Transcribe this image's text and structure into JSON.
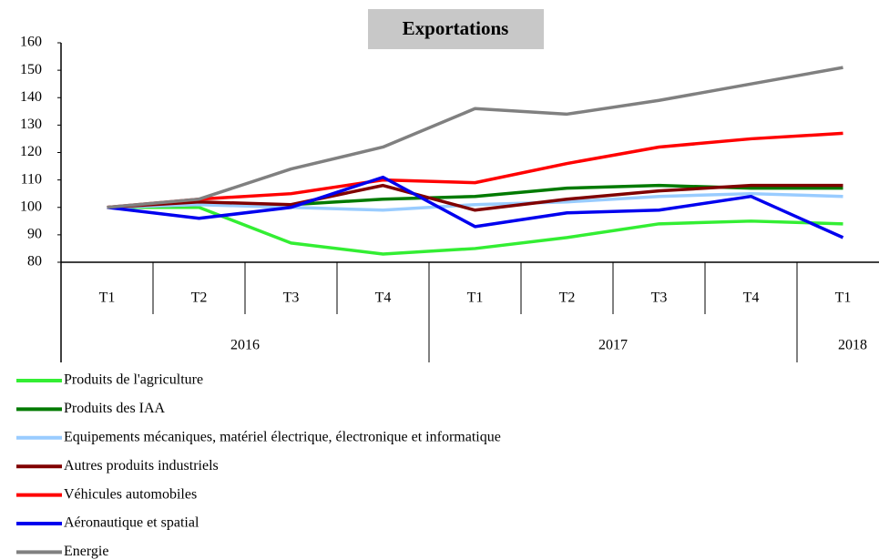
{
  "chart_data": {
    "type": "line",
    "title": "Exportations",
    "categories": [
      "T1",
      "T2",
      "T3",
      "T4",
      "T1",
      "T2",
      "T3",
      "T4",
      "T1"
    ],
    "groups": [
      {
        "label": "2016",
        "span": 4
      },
      {
        "label": "2017",
        "span": 4
      },
      {
        "label": "2018",
        "span": 1
      }
    ],
    "ylim": [
      80,
      160
    ],
    "yticks": [
      80,
      90,
      100,
      110,
      120,
      130,
      140,
      150,
      160
    ],
    "grid": false,
    "legend": "bottom",
    "series": [
      {
        "name": "Produits de l'agriculture",
        "color": "#33ee33",
        "values": [
          100,
          100,
          87,
          83,
          85,
          89,
          94,
          95,
          94
        ]
      },
      {
        "name": "Produits des IAA",
        "color": "#007a00",
        "values": [
          100,
          101,
          101,
          103,
          104,
          107,
          108,
          107,
          107
        ]
      },
      {
        "name": "Equipements mécaniques, matériel électrique, électronique et informatique",
        "color": "#99ccff",
        "values": [
          100,
          101,
          100,
          99,
          101,
          102,
          104,
          105,
          104
        ]
      },
      {
        "name": "Autres produits industriels",
        "color": "#800000",
        "values": [
          100,
          102,
          101,
          108,
          99,
          103,
          106,
          108,
          108
        ]
      },
      {
        "name": "Véhicules automobiles",
        "color": "#ff0000",
        "values": [
          100,
          103,
          105,
          110,
          109,
          116,
          122,
          125,
          127
        ]
      },
      {
        "name": "Aéronautique et spatial",
        "color": "#0000ee",
        "values": [
          100,
          96,
          100,
          111,
          93,
          98,
          99,
          104,
          89
        ]
      },
      {
        "name": "Energie",
        "color": "#808080",
        "values": [
          100,
          103,
          114,
          122,
          136,
          134,
          139,
          145,
          151
        ]
      }
    ]
  }
}
